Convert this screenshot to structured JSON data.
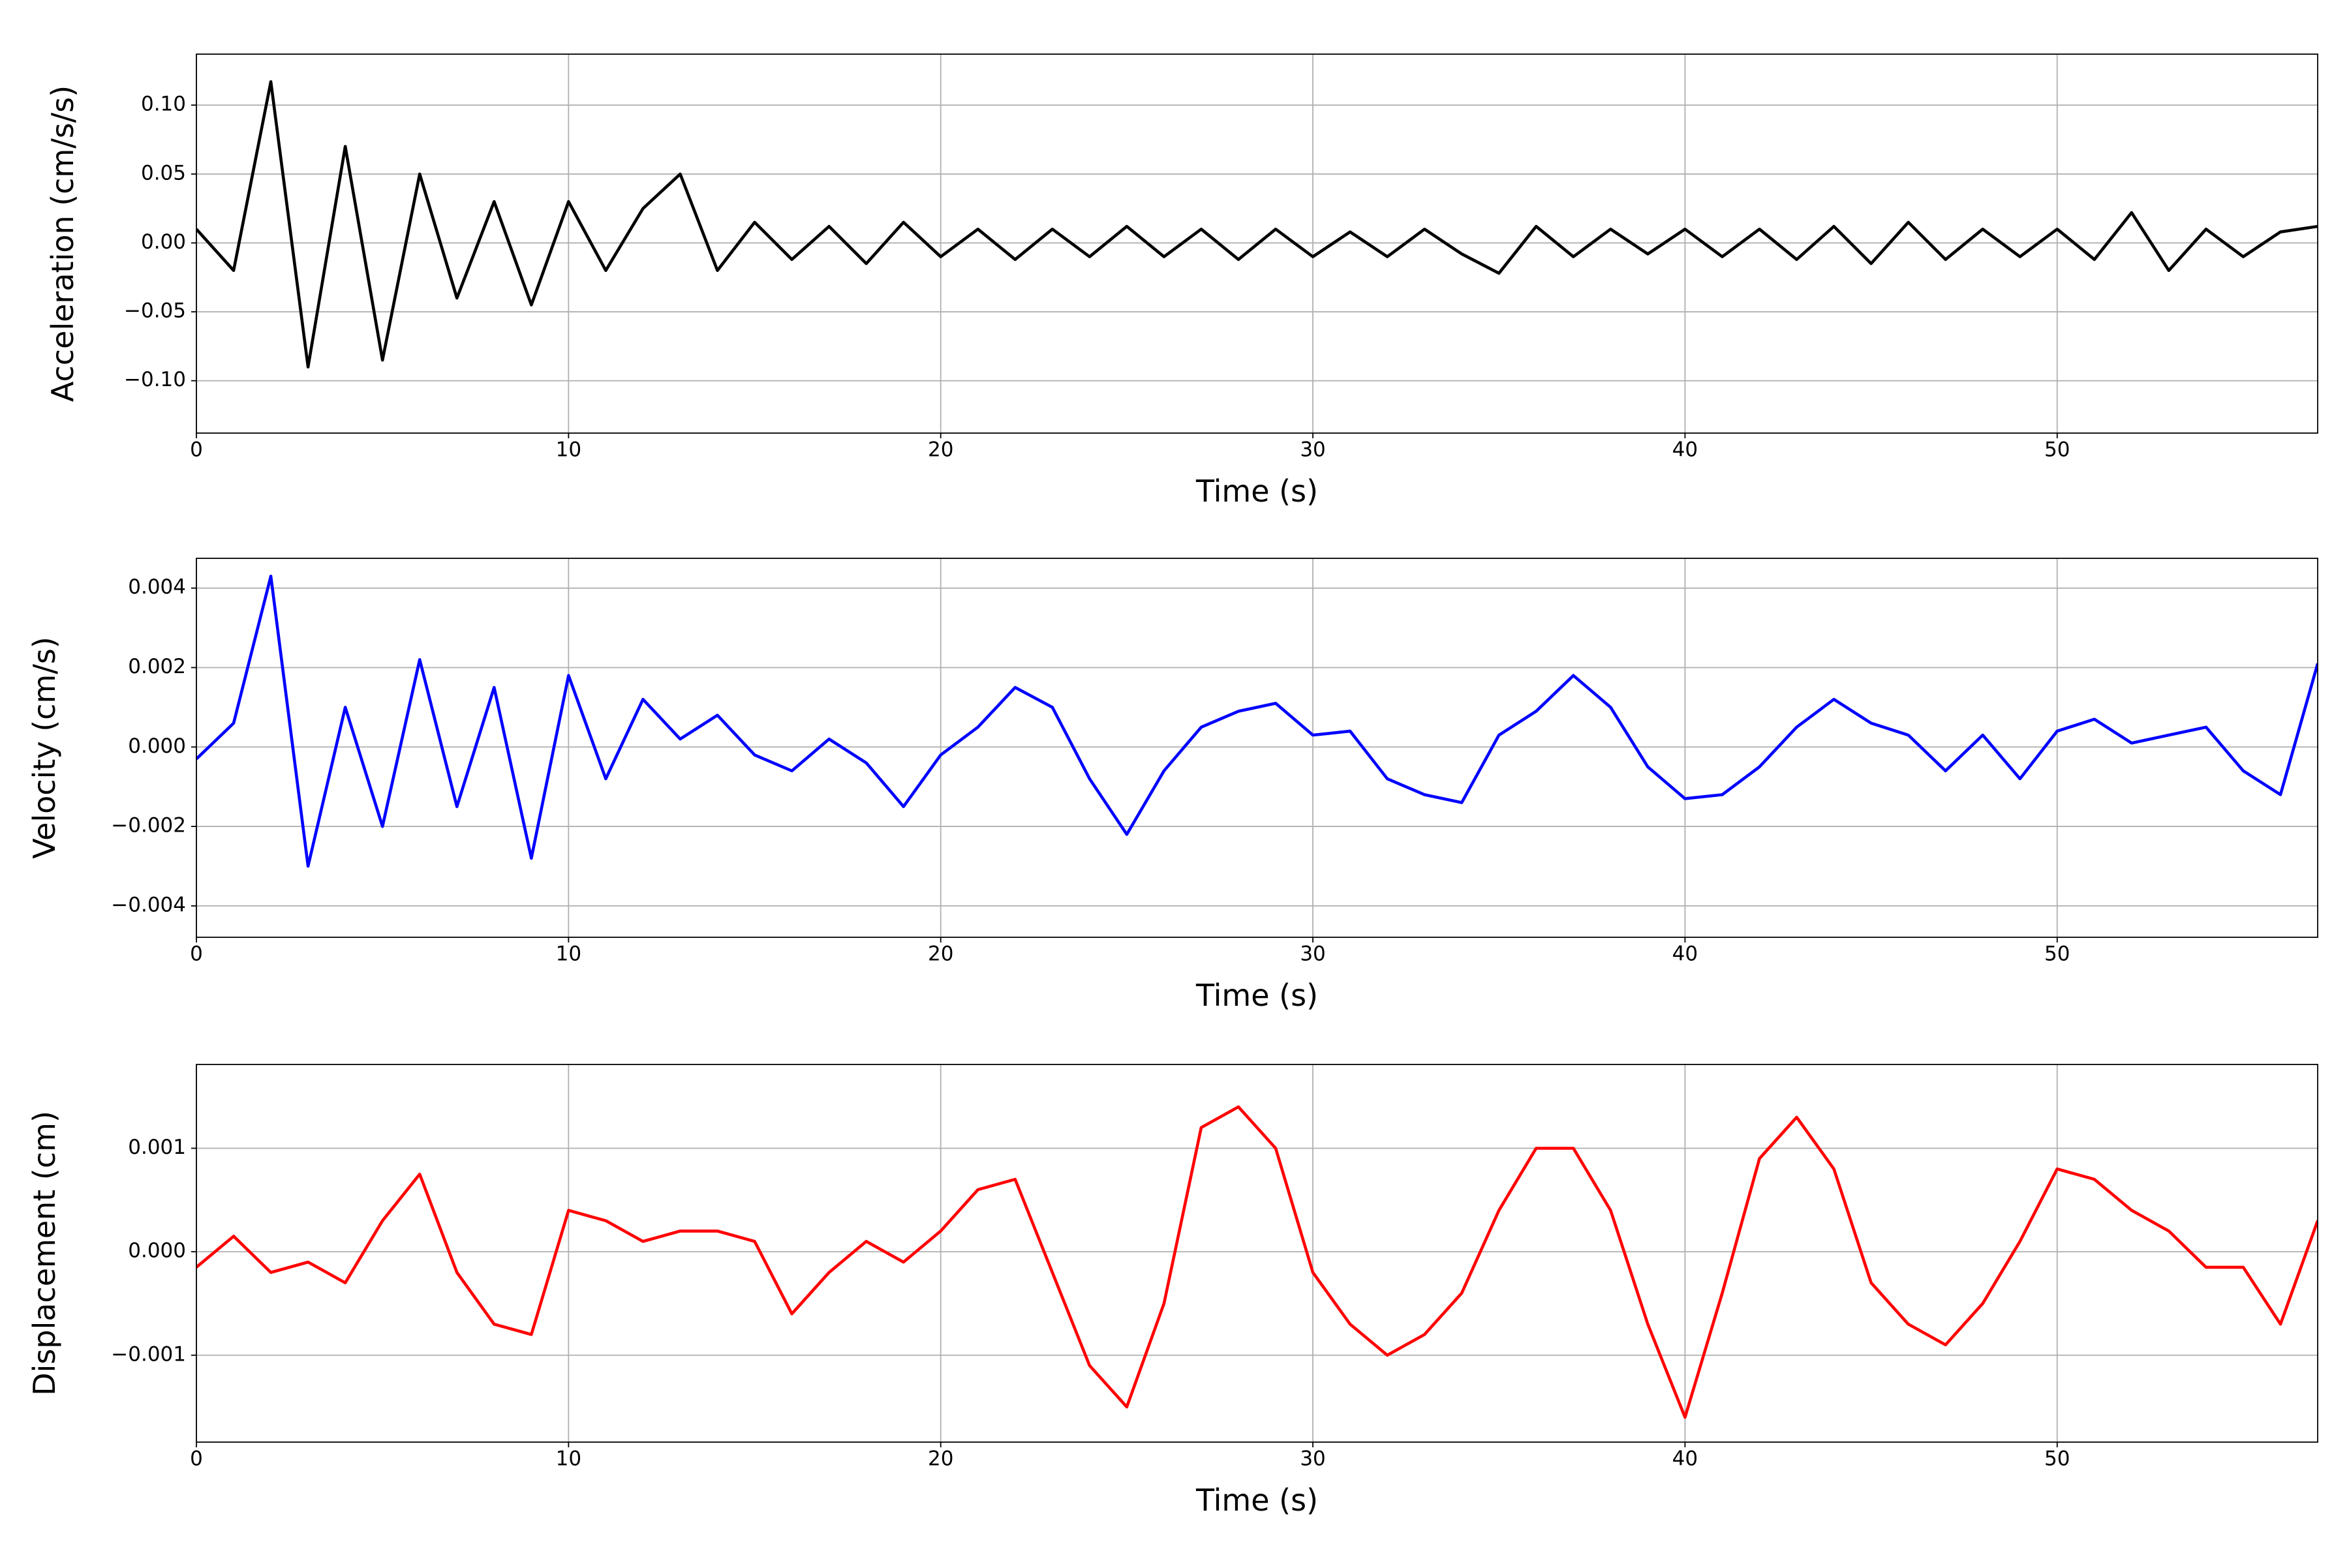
{
  "chart_data": [
    {
      "type": "line",
      "xlabel": "Time (s)",
      "ylabel": "Acceleration (cm/s/s)",
      "grid": true,
      "xlim": [
        0,
        57
      ],
      "xticks": [
        0,
        10,
        20,
        30,
        40,
        50
      ],
      "ylim": [
        -0.138,
        0.137
      ],
      "yticks": [
        {
          "value": -0.1,
          "label": "−0.10"
        },
        {
          "value": -0.05,
          "label": "−0.05"
        },
        {
          "value": 0,
          "label": "0.00"
        },
        {
          "value": 0.05,
          "label": "0.05"
        },
        {
          "value": 0.1,
          "label": "0.10"
        }
      ],
      "x": [
        0,
        1,
        2,
        3,
        4,
        5,
        6,
        7,
        8,
        9,
        10,
        11,
        12,
        13,
        14,
        15,
        16,
        17,
        18,
        19,
        20,
        21,
        22,
        23,
        24,
        25,
        26,
        27,
        28,
        29,
        30,
        31,
        32,
        33,
        34,
        35,
        36,
        37,
        38,
        39,
        40,
        41,
        42,
        43,
        44,
        45,
        46,
        47,
        48,
        49,
        50,
        51,
        52,
        53,
        54,
        55,
        56,
        57
      ],
      "series": [
        {
          "color": "#000000",
          "values": [
            0.01,
            -0.02,
            0.117,
            -0.09,
            0.07,
            -0.085,
            0.05,
            -0.04,
            0.03,
            -0.045,
            0.03,
            -0.02,
            0.025,
            0.05,
            -0.02,
            0.015,
            -0.012,
            0.012,
            -0.015,
            0.015,
            -0.01,
            0.01,
            -0.012,
            0.01,
            -0.01,
            0.012,
            -0.01,
            0.01,
            -0.012,
            0.01,
            -0.01,
            0.008,
            -0.01,
            0.01,
            -0.008,
            -0.022,
            0.012,
            -0.01,
            0.01,
            -0.008,
            0.01,
            -0.01,
            0.01,
            -0.012,
            0.012,
            -0.015,
            0.015,
            -0.012,
            0.01,
            -0.01,
            0.01,
            -0.012,
            0.022,
            -0.02,
            0.01,
            -0.01,
            0.008,
            0.012
          ]
        }
      ]
    },
    {
      "type": "line",
      "xlabel": "Time (s)",
      "ylabel": "Velocity (cm/s)",
      "grid": true,
      "xlim": [
        0,
        57
      ],
      "xticks": [
        0,
        10,
        20,
        30,
        40,
        50
      ],
      "ylim": [
        -0.00479,
        0.00475
      ],
      "yticks": [
        {
          "value": -0.004,
          "label": "−0.004"
        },
        {
          "value": -0.002,
          "label": "−0.002"
        },
        {
          "value": 0,
          "label": "0.000"
        },
        {
          "value": 0.002,
          "label": "0.002"
        },
        {
          "value": 0.004,
          "label": "0.004"
        }
      ],
      "x": [
        0,
        1,
        2,
        3,
        4,
        5,
        6,
        7,
        8,
        9,
        10,
        11,
        12,
        13,
        14,
        15,
        16,
        17,
        18,
        19,
        20,
        21,
        22,
        23,
        24,
        25,
        26,
        27,
        28,
        29,
        30,
        31,
        32,
        33,
        34,
        35,
        36,
        37,
        38,
        39,
        40,
        41,
        42,
        43,
        44,
        45,
        46,
        47,
        48,
        49,
        50,
        51,
        52,
        53,
        54,
        55,
        56,
        57
      ],
      "series": [
        {
          "color": "#0000ff",
          "values": [
            -0.0003,
            0.0006,
            0.0043,
            -0.003,
            0.001,
            -0.002,
            0.0022,
            -0.0015,
            0.0015,
            -0.0028,
            0.0018,
            -0.0008,
            0.0012,
            0.0002,
            0.0008,
            -0.0002,
            -0.0006,
            0.0002,
            -0.0004,
            -0.0015,
            -0.0002,
            0.0005,
            0.0015,
            0.001,
            -0.0008,
            -0.0022,
            -0.0006,
            0.0005,
            0.0009,
            0.0011,
            0.0003,
            0.0004,
            -0.0008,
            -0.0012,
            -0.0014,
            0.0003,
            0.0009,
            0.0018,
            0.001,
            -0.0005,
            -0.0013,
            -0.0012,
            -0.0005,
            0.0005,
            0.0012,
            0.0006,
            0.0003,
            -0.0006,
            0.0003,
            -0.0008,
            0.0004,
            0.0007,
            0.0001,
            0.0003,
            0.0005,
            -0.0006,
            -0.0012,
            0.0021
          ]
        }
      ]
    },
    {
      "type": "line",
      "xlabel": "Time (s)",
      "ylabel": "Displacement (cm)",
      "grid": true,
      "xlim": [
        0,
        57
      ],
      "xticks": [
        0,
        10,
        20,
        30,
        40,
        50
      ],
      "ylim": [
        -0.00184,
        0.00181
      ],
      "yticks": [
        {
          "value": -0.001,
          "label": "−0.001"
        },
        {
          "value": 0,
          "label": "0.000"
        },
        {
          "value": 0.001,
          "label": "0.001"
        }
      ],
      "x": [
        0,
        1,
        2,
        3,
        4,
        5,
        6,
        7,
        8,
        9,
        10,
        11,
        12,
        13,
        14,
        15,
        16,
        17,
        18,
        19,
        20,
        21,
        22,
        23,
        24,
        25,
        26,
        27,
        28,
        29,
        30,
        31,
        32,
        33,
        34,
        35,
        36,
        37,
        38,
        39,
        40,
        41,
        42,
        43,
        44,
        45,
        46,
        47,
        48,
        49,
        50,
        51,
        52,
        53,
        54,
        55,
        56,
        57
      ],
      "series": [
        {
          "color": "#ff0000",
          "values": [
            -0.00015,
            0.00015,
            -0.0002,
            -0.0001,
            -0.0003,
            0.0003,
            0.00075,
            -0.0002,
            -0.0007,
            -0.0008,
            0.0004,
            0.0003,
            0.0001,
            0.0002,
            0.0002,
            0.0001,
            -0.0006,
            -0.0002,
            0.0001,
            -0.0001,
            0.0002,
            0.0006,
            0.0007,
            -0.0002,
            -0.0011,
            -0.0015,
            -0.0005,
            0.0012,
            0.0014,
            0.001,
            -0.0002,
            -0.0007,
            -0.001,
            -0.0008,
            -0.0004,
            0.0004,
            0.001,
            0.001,
            0.0004,
            -0.0007,
            -0.0016,
            -0.0004,
            0.0009,
            0.0013,
            0.0008,
            -0.0003,
            -0.0007,
            -0.0009,
            -0.0005,
            0.0001,
            0.0008,
            0.0007,
            0.0004,
            0.0002,
            -0.00015,
            -0.00015,
            -0.0007,
            0.0003
          ]
        }
      ]
    }
  ]
}
